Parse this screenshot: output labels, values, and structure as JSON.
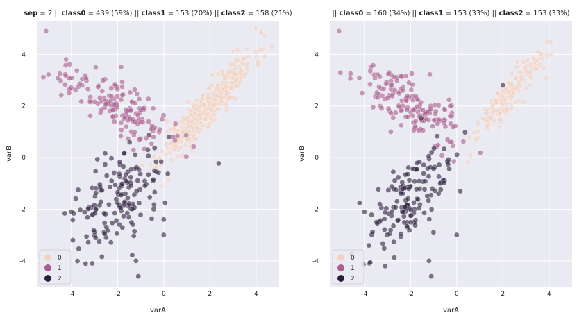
{
  "chart_data": [
    {
      "type": "scatter",
      "title_parts": [
        {
          "t": "sep",
          "b": true
        },
        {
          "t": " = 2 || ",
          "b": false
        },
        {
          "t": "class0",
          "b": true
        },
        {
          "t": " = 439 (59%)  || ",
          "b": false
        },
        {
          "t": "class1",
          "b": true
        },
        {
          "t": " = 153 (20%)  || ",
          "b": false
        },
        {
          "t": "class2",
          "b": true
        },
        {
          "t": " = 158 (21%)",
          "b": false
        }
      ],
      "xlabel": "varA",
      "ylabel": "varB",
      "xlim": [
        -5.5,
        5
      ],
      "ylim": [
        -5,
        5.3
      ],
      "xticks": [
        -4,
        -2,
        0,
        2,
        4
      ],
      "yticks": [
        -4,
        -2,
        0,
        2,
        4
      ],
      "grid": true,
      "legend": {
        "placement": "bottom-left",
        "entries": [
          "0",
          "1",
          "2"
        ]
      },
      "series": [
        {
          "name": "0",
          "color": "#f0d3c7",
          "count": 439,
          "center": [
            1.9,
            2.0
          ],
          "spread": [
            1.0,
            1.0
          ],
          "corr": 0.93,
          "extra": [
            [
              4.0,
              5.0
            ],
            [
              4.4,
              4.7
            ],
            [
              3.6,
              4.2
            ],
            [
              -0.1,
              -1.1
            ],
            [
              0.2,
              -0.9
            ],
            [
              3.0,
              4.1
            ]
          ]
        },
        {
          "name": "1",
          "color": "#a85e8e",
          "count": 153,
          "center": [
            -2.1,
            2.1
          ],
          "spread": [
            1.1,
            0.75
          ],
          "corr": -0.75,
          "extra": [
            [
              -5.1,
              4.9
            ],
            [
              -4.1,
              2.5
            ],
            [
              -0.9,
              1.9
            ]
          ]
        },
        {
          "name": "2",
          "color": "#2d1e3e",
          "count": 158,
          "center": [
            -2.0,
            -1.5
          ],
          "spread": [
            0.95,
            1.05
          ],
          "corr": 0.55,
          "extra": [
            [
              -4.0,
              -2.1
            ],
            [
              -3.1,
              -4.1
            ],
            [
              -1.2,
              -4.0
            ],
            [
              -1.1,
              -4.6
            ],
            [
              0.0,
              -2.4
            ],
            [
              0.0,
              -3.0
            ]
          ]
        }
      ]
    },
    {
      "type": "scatter",
      "title_parts": [
        {
          "t": "|| ",
          "b": false
        },
        {
          "t": "class0",
          "b": true
        },
        {
          "t": " = 160 (34%)  || ",
          "b": false
        },
        {
          "t": "class1",
          "b": true
        },
        {
          "t": " = 153 (33%)  || ",
          "b": false
        },
        {
          "t": "class2",
          "b": true
        },
        {
          "t": " = 153 (33%)",
          "b": false
        }
      ],
      "xlabel": "varA",
      "ylabel": "varB",
      "xlim": [
        -5.5,
        5
      ],
      "ylim": [
        -5,
        5.3
      ],
      "xticks": [
        -4,
        -2,
        0,
        2,
        4
      ],
      "yticks": [
        -4,
        -2,
        0,
        2,
        4
      ],
      "grid": true,
      "legend": {
        "placement": "bottom-left",
        "entries": [
          "0",
          "1",
          "2"
        ]
      },
      "series": [
        {
          "name": "0",
          "color": "#f0d3c7",
          "count": 160,
          "center": [
            2.1,
            2.3
          ],
          "spread": [
            0.75,
            0.8
          ],
          "corr": 0.9,
          "extra": [
            [
              3.5,
              4.1
            ],
            [
              3.2,
              3.6
            ],
            [
              0.5,
              -0.2
            ],
            [
              0.6,
              0.1
            ]
          ]
        },
        {
          "name": "1",
          "color": "#a85e8e",
          "count": 153,
          "center": [
            -2.1,
            2.1
          ],
          "spread": [
            1.1,
            0.75
          ],
          "corr": -0.75,
          "extra": [
            [
              -5.1,
              4.9
            ],
            [
              -4.1,
              2.5
            ],
            [
              -0.4,
              0.7
            ]
          ]
        },
        {
          "name": "2",
          "color": "#2d1e3e",
          "count": 153,
          "center": [
            -2.0,
            -1.6
          ],
          "spread": [
            0.95,
            1.0
          ],
          "corr": 0.55,
          "extra": [
            [
              -4.0,
              -2.1
            ],
            [
              -3.1,
              -4.2
            ],
            [
              -1.2,
              -4.0
            ],
            [
              -1.1,
              -4.6
            ],
            [
              0.0,
              -3.0
            ],
            [
              2.0,
              2.8
            ]
          ]
        }
      ]
    }
  ]
}
